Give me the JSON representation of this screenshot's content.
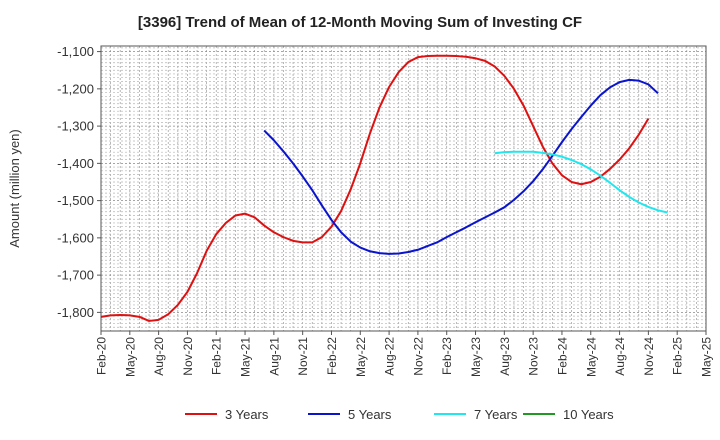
{
  "chart_data": {
    "type": "line",
    "title": "[3396]  Trend of Mean of 12-Month Moving Sum of Investing CF",
    "xlabel": "",
    "ylabel": "Amount (million yen)",
    "ylim": [
      -1850,
      -1085
    ],
    "yticks": [
      -1100,
      -1200,
      -1300,
      -1400,
      -1500,
      -1600,
      -1700,
      -1800
    ],
    "ytick_labels": [
      "-1,100",
      "-1,200",
      "-1,300",
      "-1,400",
      "-1,500",
      "-1,600",
      "-1,700",
      "-1,800"
    ],
    "x_start": "Feb-20",
    "x_end": "May-25",
    "xtick_labels": [
      "Feb-20",
      "May-20",
      "Aug-20",
      "Nov-20",
      "Feb-21",
      "May-21",
      "Aug-21",
      "Nov-21",
      "Feb-22",
      "May-22",
      "Aug-22",
      "Nov-22",
      "Feb-23",
      "May-23",
      "Aug-23",
      "Nov-23",
      "Feb-24",
      "May-24",
      "Aug-24",
      "Nov-24",
      "Feb-25",
      "May-25"
    ],
    "grid": true,
    "legend_position": "bottom",
    "series": [
      {
        "name": "3 Years",
        "color": "#dd1111",
        "start": "Feb-20",
        "values": [
          -1812,
          -1808,
          -1807,
          -1808,
          -1812,
          -1823,
          -1820,
          -1805,
          -1780,
          -1745,
          -1695,
          -1635,
          -1590,
          -1560,
          -1540,
          -1535,
          -1545,
          -1567,
          -1585,
          -1598,
          -1608,
          -1612,
          -1612,
          -1598,
          -1570,
          -1528,
          -1470,
          -1400,
          -1320,
          -1250,
          -1195,
          -1155,
          -1128,
          -1115,
          -1112,
          -1111,
          -1111,
          -1112,
          -1114,
          -1118,
          -1125,
          -1140,
          -1165,
          -1200,
          -1245,
          -1300,
          -1355,
          -1400,
          -1432,
          -1450,
          -1456,
          -1450,
          -1436,
          -1415,
          -1390,
          -1360,
          -1323,
          -1280
        ]
      },
      {
        "name": "5 Years",
        "color": "#0a14cc",
        "start": "Jul-21",
        "values": [
          -1312,
          -1338,
          -1368,
          -1400,
          -1435,
          -1472,
          -1513,
          -1552,
          -1585,
          -1610,
          -1626,
          -1636,
          -1641,
          -1643,
          -1642,
          -1638,
          -1632,
          -1622,
          -1612,
          -1598,
          -1585,
          -1572,
          -1558,
          -1545,
          -1532,
          -1518,
          -1498,
          -1475,
          -1448,
          -1416,
          -1380,
          -1343,
          -1308,
          -1276,
          -1245,
          -1217,
          -1196,
          -1182,
          -1176,
          -1178,
          -1188,
          -1212
        ]
      },
      {
        "name": "7 Years",
        "color": "#22e6ee",
        "start": "Jul-23",
        "values": [
          -1373,
          -1370,
          -1369,
          -1369,
          -1369,
          -1372,
          -1376,
          -1382,
          -1391,
          -1402,
          -1416,
          -1433,
          -1452,
          -1472,
          -1490,
          -1505,
          -1517,
          -1526,
          -1532
        ]
      },
      {
        "name": "10 Years",
        "color": "#229922",
        "start": "Feb-25",
        "values": []
      }
    ]
  }
}
